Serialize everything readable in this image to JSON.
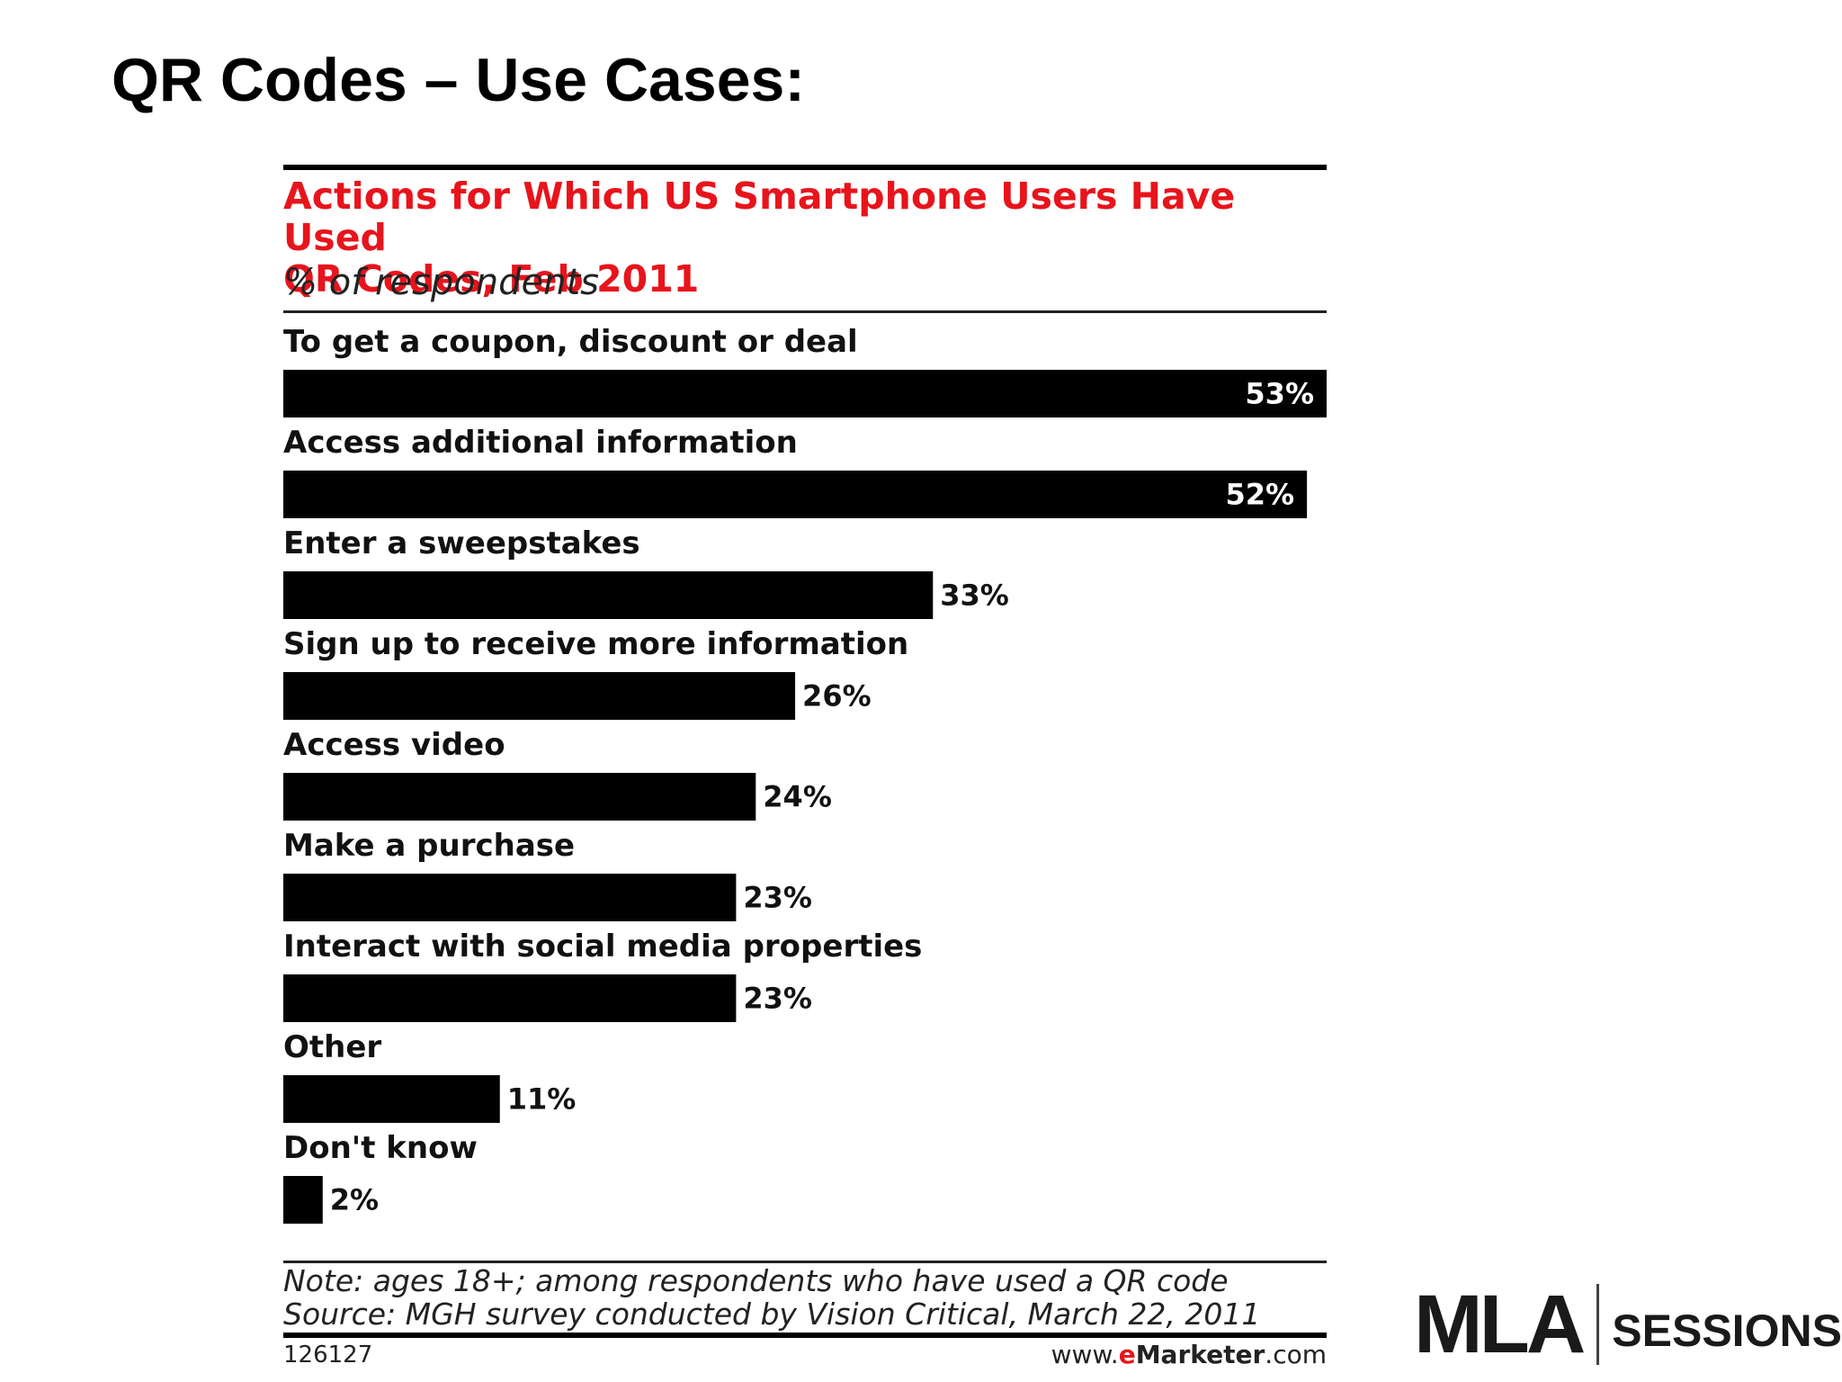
{
  "slide": {
    "title": "QR Codes – Use Cases:"
  },
  "chart_data": {
    "type": "bar",
    "orientation": "horizontal",
    "title_line1": "Actions for Which US Smartphone Users Have Used",
    "title_line2": "QR Codes, Feb 2011",
    "subtitle": "% of respondents",
    "categories": [
      "To get a coupon, discount or deal",
      "Access additional information",
      "Enter a sweepstakes",
      "Sign up to receive more information",
      "Access video",
      "Make a purchase",
      "Interact with social media properties",
      "Other",
      "Don't know"
    ],
    "values": [
      53,
      52,
      33,
      26,
      24,
      23,
      23,
      11,
      2
    ],
    "value_labels": [
      "53%",
      "52%",
      "33%",
      "26%",
      "24%",
      "23%",
      "23%",
      "11%",
      "2%"
    ],
    "xlim": [
      0,
      53
    ],
    "bar_color": "#000000",
    "title_color": "#e8141c",
    "grid": false,
    "note": "Note: ages 18+; among respondents who have used a QR code",
    "source": "Source: MGH survey conducted by Vision Critical, March 22, 2011",
    "chart_id": "126127",
    "site": {
      "prefix": "www.",
      "brand": "e",
      "name": "Marketer",
      "suffix": ".com"
    }
  },
  "logo": {
    "mark": "MLA",
    "text": "SESSIONS"
  }
}
